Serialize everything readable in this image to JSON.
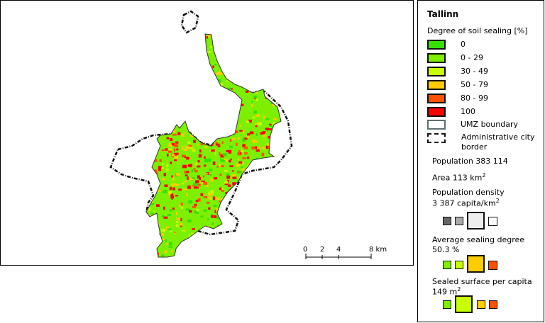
{
  "legend": {
    "city": "Tallinn",
    "heading": "Degree of soil sealing [%]",
    "classes": [
      {
        "label": "0",
        "color": "#33e000"
      },
      {
        "label": "0 - 29",
        "color": "#7cf000"
      },
      {
        "label": "30 - 49",
        "color": "#c8ff00"
      },
      {
        "label": "50 - 79",
        "color": "#ffcc00"
      },
      {
        "label": "80 - 99",
        "color": "#ff5000"
      },
      {
        "label": "100",
        "color": "#ff0000"
      }
    ],
    "umz_label": "UMZ boundary",
    "admin_label_1": "Administrative city",
    "admin_label_2": "border",
    "population": "Population 383 114",
    "area": "Area 113 km",
    "area_sup": "2",
    "density_title": "Population density",
    "density_value": "3 387 capita/km",
    "density_sup": "2",
    "sealing_title": "Average sealing degree",
    "sealing_value": "50.3 %",
    "sealed_title": "Sealed surface per capita",
    "sealed_value": "149 m",
    "sealed_sup": "2"
  },
  "scale_bar": {
    "ticks": [
      "0",
      "2",
      "4",
      "8 km"
    ]
  }
}
